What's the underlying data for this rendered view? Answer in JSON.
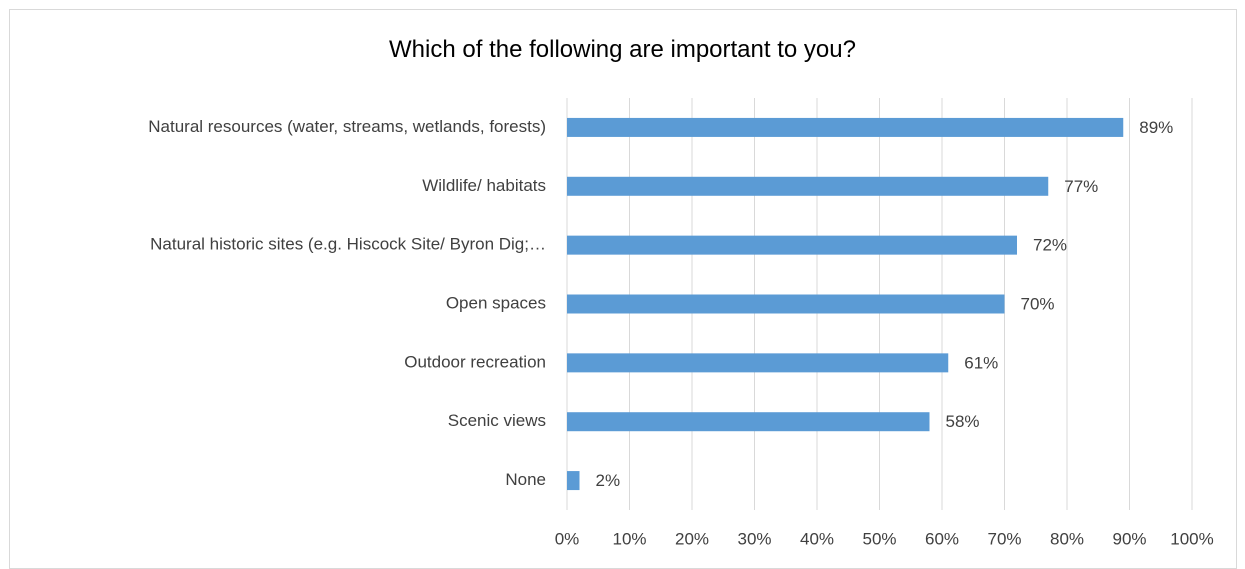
{
  "chart_data": {
    "type": "bar",
    "orientation": "horizontal",
    "title": "Which of the following are important to you?",
    "categories": [
      "Natural resources (water, streams, wetlands, forests)",
      "Wildlife/ habitats",
      "Natural historic sites (e.g. Hiscock Site/ Byron Dig;…",
      "Open spaces",
      "Outdoor recreation",
      "Scenic views",
      "None"
    ],
    "values": [
      89,
      77,
      72,
      70,
      61,
      58,
      2
    ],
    "value_labels": [
      "89%",
      "77%",
      "72%",
      "70%",
      "61%",
      "58%",
      "2%"
    ],
    "xlim": [
      0,
      100
    ],
    "x_ticks": [
      0,
      10,
      20,
      30,
      40,
      50,
      60,
      70,
      80,
      90,
      100
    ],
    "x_tick_labels": [
      "0%",
      "10%",
      "20%",
      "30%",
      "40%",
      "50%",
      "60%",
      "70%",
      "80%",
      "90%",
      "100%"
    ],
    "xlabel": "",
    "ylabel": "",
    "grid": true,
    "legend": "none",
    "bar_color": "#5b9bd5",
    "grid_color": "#d9d9d9"
  }
}
